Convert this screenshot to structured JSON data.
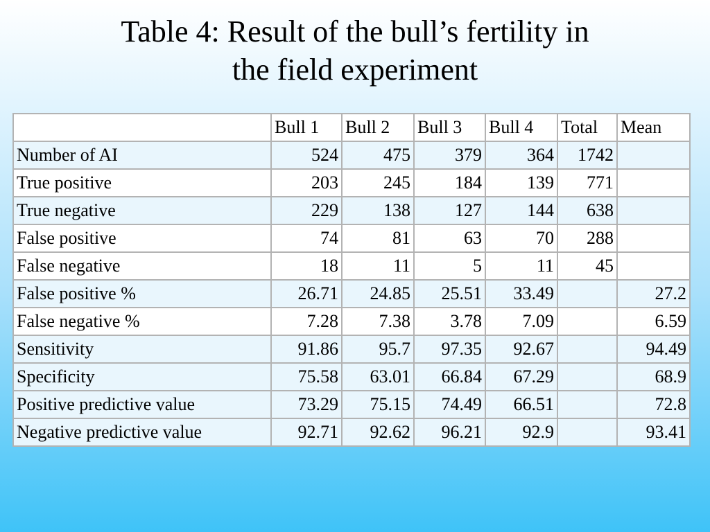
{
  "title": {
    "line1": "Table 4: Result of the bull’s fertility in",
    "line2": "the field experiment"
  },
  "table": {
    "headers": [
      "",
      "Bull 1",
      "Bull 2",
      "Bull 3",
      "Bull 4",
      "Total",
      "Mean"
    ],
    "rows": [
      [
        "Number of AI",
        "524",
        "475",
        "379",
        "364",
        "1742",
        ""
      ],
      [
        "True positive",
        "203",
        "245",
        "184",
        "139",
        "771",
        ""
      ],
      [
        "True negative",
        "229",
        "138",
        "127",
        "144",
        "638",
        ""
      ],
      [
        "False positive",
        "74",
        "81",
        "63",
        "70",
        "288",
        ""
      ],
      [
        "False negative",
        "18",
        "11",
        "5",
        "11",
        "45",
        ""
      ],
      [
        "False positive %",
        "26.71",
        "24.85",
        "25.51",
        "33.49",
        "",
        "27.2"
      ],
      [
        "False negative %",
        "7.28",
        "7.38",
        "3.78",
        "7.09",
        "",
        "6.59"
      ],
      [
        "Sensitivity",
        "91.86",
        "95.7",
        "97.35",
        "92.67",
        "",
        "94.49"
      ],
      [
        "Specificity",
        "75.58",
        "63.01",
        "66.84",
        "67.29",
        "",
        "68.9"
      ],
      [
        "Positive predictive value",
        "73.29",
        "75.15",
        "74.49",
        "66.51",
        "",
        "72.8"
      ],
      [
        "Negative predictive value",
        "92.71",
        "92.62",
        "96.21",
        "92.9",
        "",
        "93.41"
      ]
    ]
  },
  "colors": {
    "background_top": "#ffffff",
    "background_bottom": "#3fc3f8",
    "row_light": "#ffffff",
    "row_blue": "#e9f6fd",
    "border": "#b3b3b3"
  }
}
